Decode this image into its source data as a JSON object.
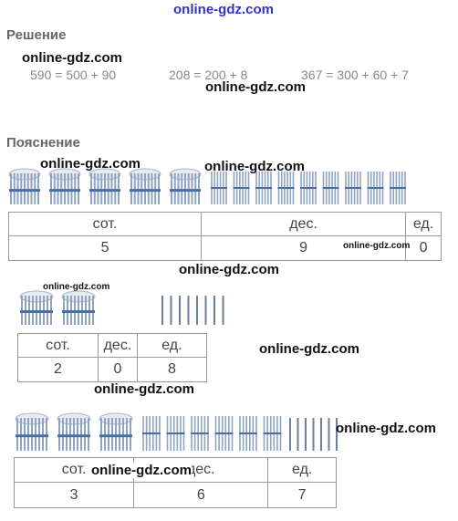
{
  "watermark": "online-gdz.com",
  "solution": {
    "heading": "Решение",
    "equations": [
      "590 = 500 + 90",
      "208 = 200 + 8",
      "367 = 300 + 60 + 7"
    ]
  },
  "explanation": {
    "heading": "Пояснение",
    "tables": [
      {
        "headers": [
          "сот.",
          "дес.",
          "ед."
        ],
        "values": [
          "5",
          "9",
          "0"
        ],
        "bundles_hundreds": 5,
        "bundles_tens": 9,
        "sticks_units": 0
      },
      {
        "headers": [
          "сот.",
          "дес.",
          "ед."
        ],
        "values": [
          "2",
          "0",
          "8"
        ],
        "bundles_hundreds": 2,
        "bundles_tens": 0,
        "sticks_units": 8
      },
      {
        "headers": [
          "сот.",
          "дес.",
          "ед."
        ],
        "values": [
          "3",
          "6",
          "7"
        ],
        "bundles_hundreds": 3,
        "bundles_tens": 6,
        "sticks_units": 7
      }
    ]
  },
  "colors": {
    "stick": "#8fa4c4",
    "table_border": "#999999"
  }
}
